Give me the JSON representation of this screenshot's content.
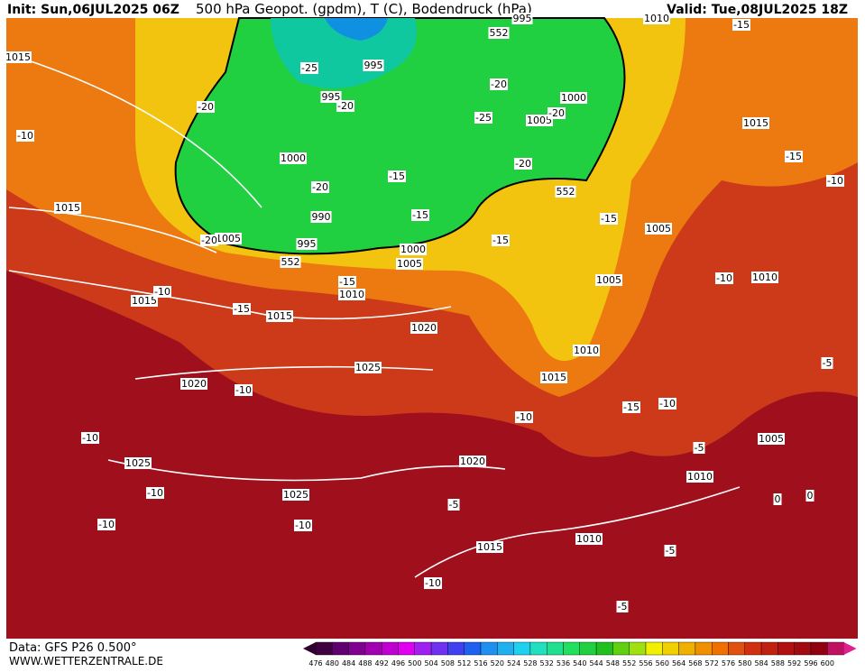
{
  "header": {
    "init": "Init: Sun,06JUL2025 06Z",
    "title": "500 hPa Geopot. (gpdm), T (C), Bodendruck (hPa)",
    "valid": "Valid: Tue,08JUL2025 18Z"
  },
  "map_labels": [
    "1015",
    "-10",
    "1015",
    "1015",
    "-10",
    "-15",
    "1015",
    "-15",
    "1010",
    "1020",
    "1025",
    "1020",
    "-10",
    "-10",
    "1025",
    "-10",
    "-10",
    "1025",
    "-10",
    "1020",
    "-5",
    "1015",
    "-10",
    "1010",
    "-5",
    "-5",
    "1010",
    "1005",
    "-5",
    "0",
    "0",
    "-5",
    "1010",
    "-10",
    "1005",
    "-15",
    "1005",
    "1010",
    "1015",
    "-15",
    "-10",
    "-10",
    "-15",
    "1005",
    "1000",
    "-15",
    "-15",
    "995",
    "990",
    "-20",
    "1000",
    "995",
    "-20",
    "-25",
    "995",
    "-20",
    "1005",
    "-20",
    "552",
    "552",
    "995",
    "1010",
    "-15",
    "-20",
    "-25",
    "1000",
    "1005",
    "-20",
    "-20",
    "552",
    "1015",
    "-15",
    "-10"
  ],
  "color_scale": [
    476,
    480,
    484,
    488,
    492,
    496,
    500,
    504,
    508,
    512,
    516,
    520,
    524,
    528,
    532,
    536,
    540,
    544,
    548,
    552,
    556,
    560,
    564,
    568,
    572,
    576,
    580,
    584,
    588,
    592,
    596,
    600
  ],
  "footer": {
    "data": "Data: GFS P26 0.500°",
    "site": "WWW.WETTERZENTRALE.DE"
  }
}
